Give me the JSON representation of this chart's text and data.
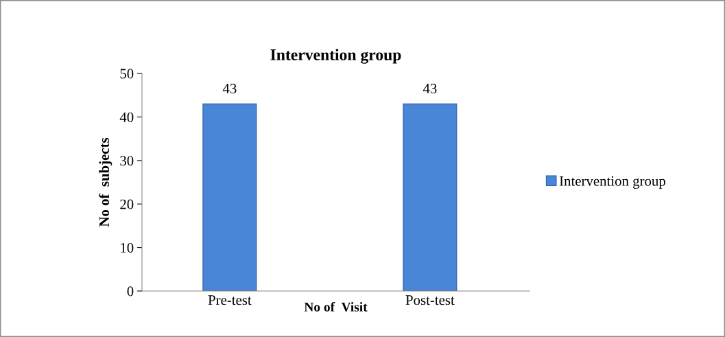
{
  "chart_data": {
    "type": "bar",
    "title": "Intervention group",
    "xlabel": "No of  Visit",
    "ylabel": "No of  subjects",
    "categories": [
      "Pre-test",
      "Post-test"
    ],
    "series": [
      {
        "name": "Intervention group",
        "color": "#4a86d8",
        "values": [
          43,
          43
        ]
      }
    ],
    "ylim": [
      0,
      50
    ],
    "yticks": [
      0,
      10,
      20,
      30,
      40,
      50
    ],
    "data_labels": true,
    "legend": "right",
    "grid": false
  }
}
